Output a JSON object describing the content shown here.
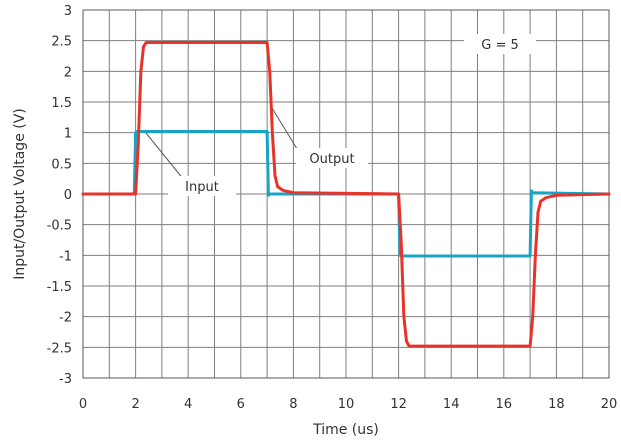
{
  "chart_data": {
    "type": "line",
    "title": "",
    "xlabel": "Time (us)",
    "ylabel": "Input/Output Voltage (V)",
    "xlim": [
      0,
      20
    ],
    "ylim": [
      -3,
      3
    ],
    "xticks": [
      "0",
      "2",
      "4",
      "6",
      "8",
      "10",
      "12",
      "14",
      "16",
      "18",
      "20"
    ],
    "yticks": [
      "3",
      "2.5",
      "2",
      "1.5",
      "1",
      "0.5",
      "0",
      "-0.5",
      "-1",
      "-1.5",
      "-2",
      "-2.5",
      "-3"
    ],
    "grid": true,
    "annotations": [
      "G = 5",
      "Output",
      "Input"
    ],
    "series": [
      {
        "name": "Input",
        "color": "#1BA3C6",
        "x": [
          0,
          1.95,
          2.0,
          2.05,
          7.0,
          7.05,
          7.1,
          12.0,
          12.05,
          12.1,
          17.0,
          17.05,
          17.1,
          20
        ],
        "y": [
          0,
          0,
          1.0,
          1.02,
          1.02,
          -0.02,
          0,
          0,
          -1.0,
          -1.01,
          -1.01,
          0.05,
          0.02,
          0
        ]
      },
      {
        "name": "Output",
        "color": "#E8332A",
        "x": [
          0,
          2.0,
          2.1,
          2.2,
          2.3,
          2.4,
          7.0,
          7.1,
          7.2,
          7.3,
          7.4,
          7.6,
          8.0,
          12.0,
          12.1,
          12.2,
          12.3,
          12.4,
          17.0,
          17.1,
          17.2,
          17.3,
          17.4,
          17.6,
          18.0,
          20
        ],
        "y": [
          0,
          0,
          0.8,
          2.0,
          2.4,
          2.47,
          2.47,
          2.0,
          1.0,
          0.3,
          0.12,
          0.06,
          0.02,
          0,
          -0.8,
          -2.0,
          -2.4,
          -2.48,
          -2.48,
          -2.0,
          -1.0,
          -0.3,
          -0.12,
          -0.06,
          -0.02,
          0
        ]
      }
    ]
  }
}
